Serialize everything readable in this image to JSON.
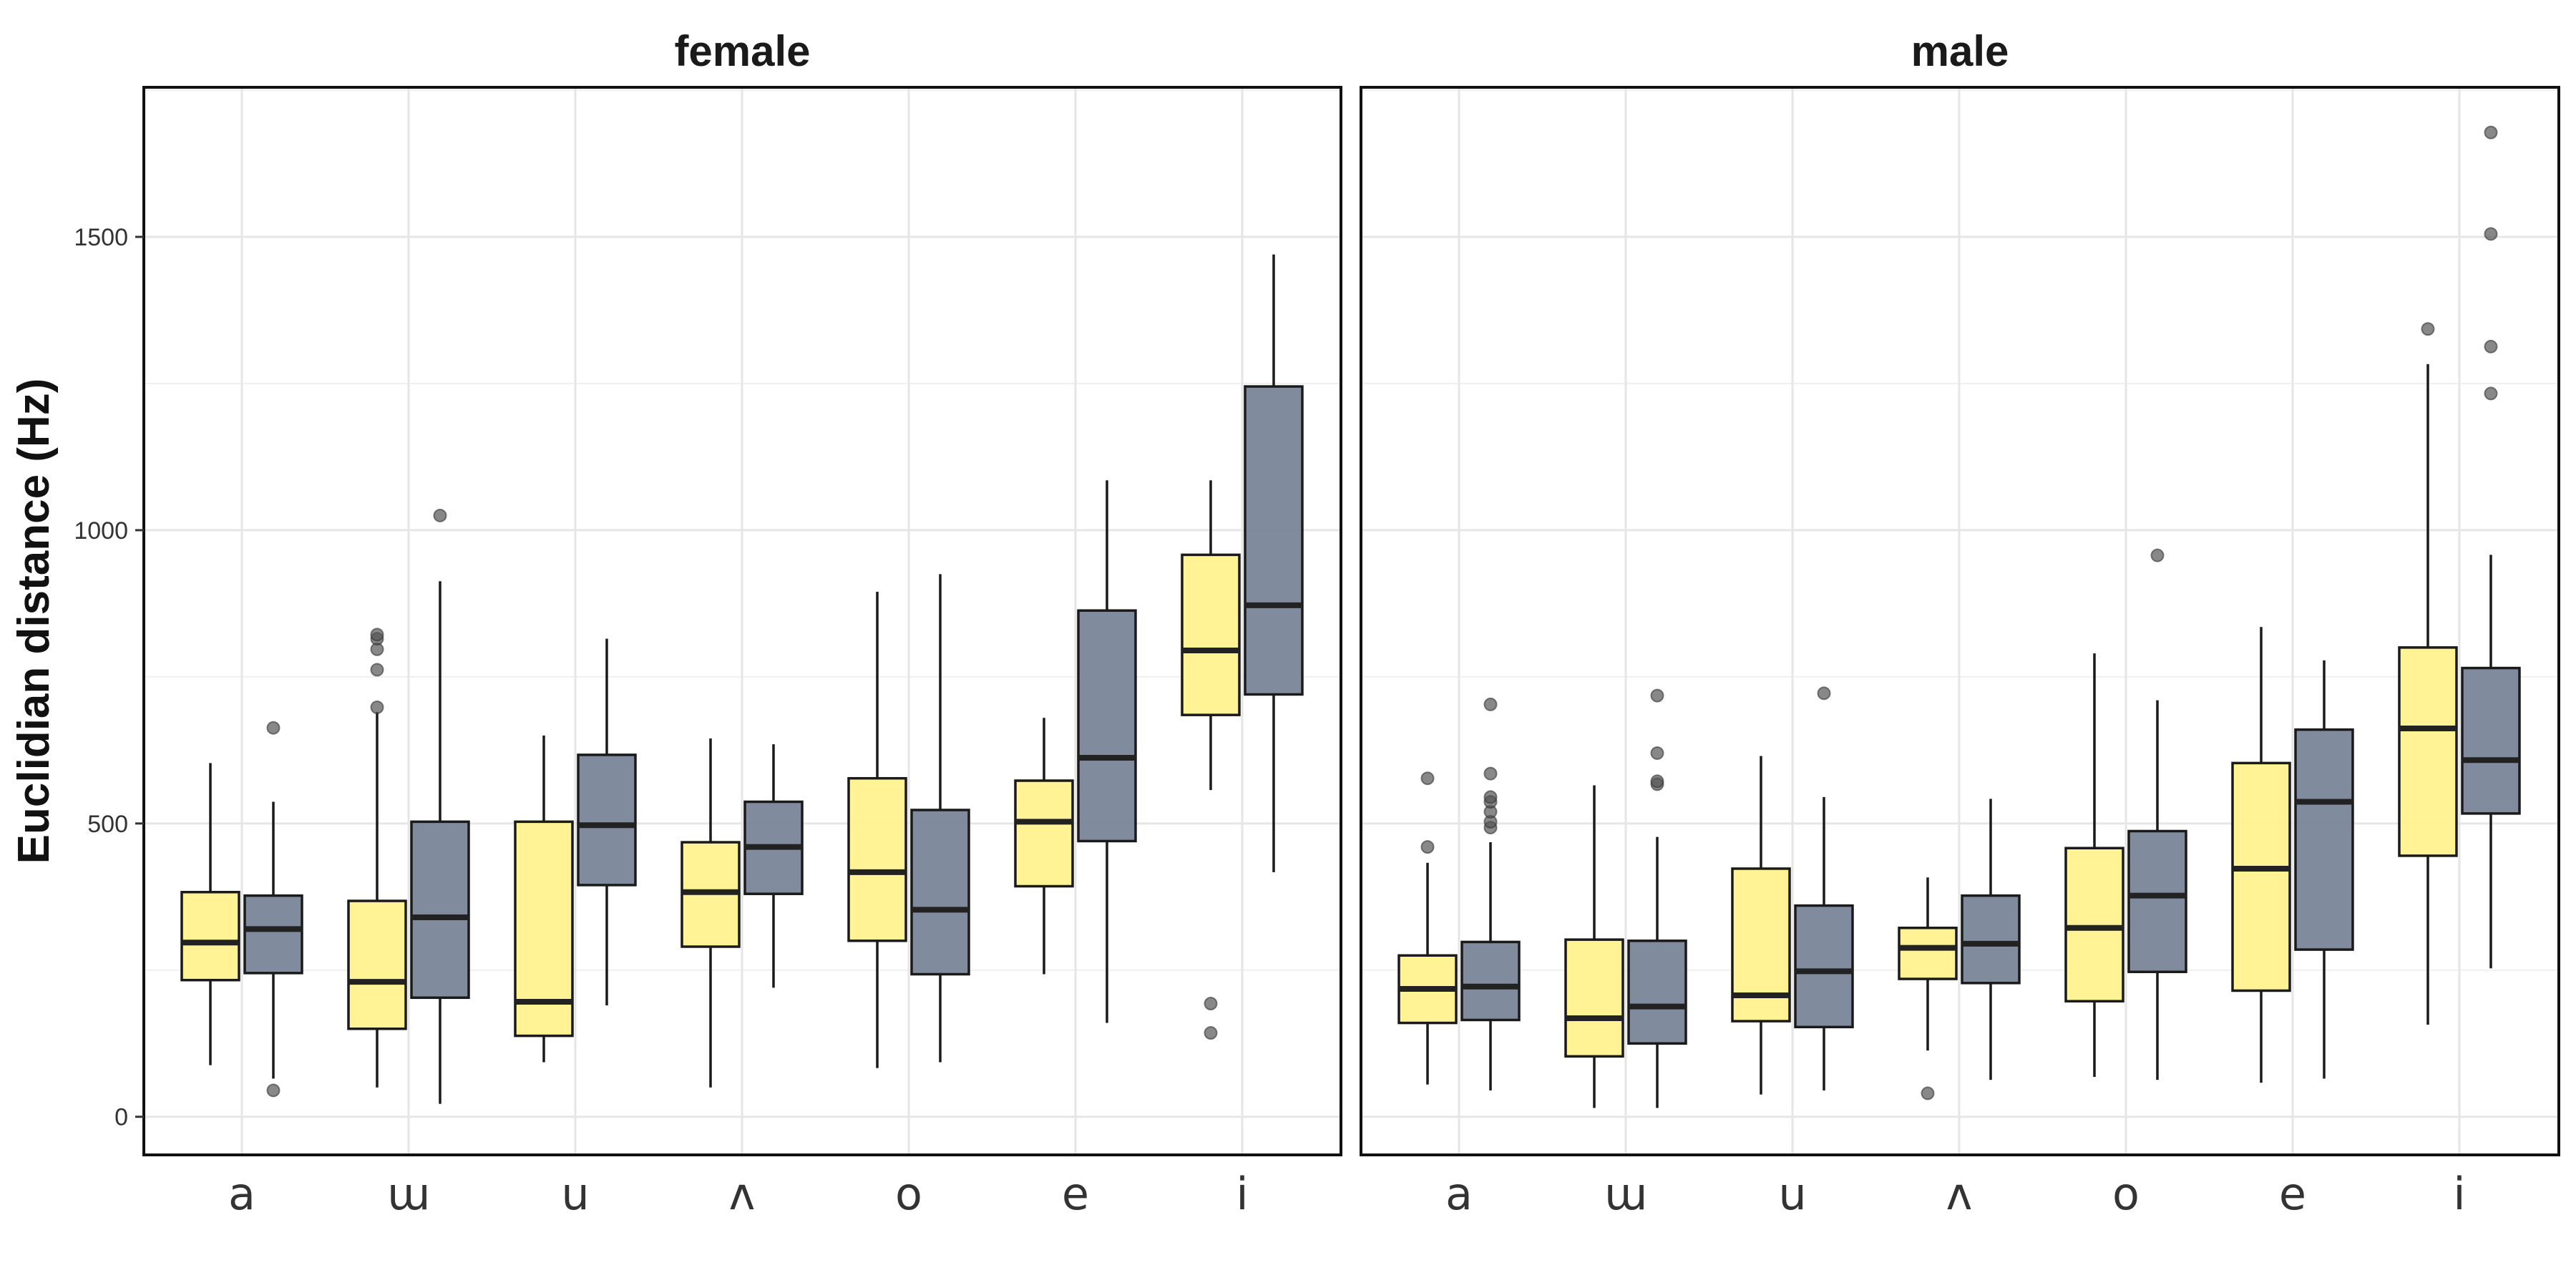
{
  "chart_data": {
    "type": "boxplot",
    "ylabel": "Euclidian distance (Hz)",
    "xlabel": "",
    "ylim": [
      -65,
      1755
    ],
    "yticks": [
      0,
      500,
      1000,
      1500
    ],
    "categories": [
      "a",
      "ɯ",
      "u",
      "ʌ",
      "o",
      "e",
      "i"
    ],
    "colors": {
      "group1": "#fff28f",
      "group2": "#7a8599",
      "median": "#222222",
      "outlier": "#555555",
      "grid": "#e6e6e6"
    },
    "legend": "none",
    "grid": true,
    "panels": [
      {
        "title": "female",
        "groups": [
          {
            "color_key": "group1",
            "boxes": [
              {
                "category": "a",
                "whisker_low": 88,
                "q1": 233,
                "median": 297,
                "q3": 383,
                "whisker_high": 603,
                "outliers": []
              },
              {
                "category": "ɯ",
                "whisker_low": 50,
                "q1": 150,
                "median": 230,
                "q3": 368,
                "whisker_high": 690,
                "outliers": [
                  698,
                  762,
                  797,
                  815,
                  822
                ]
              },
              {
                "category": "u",
                "whisker_low": 93,
                "q1": 138,
                "median": 196,
                "q3": 503,
                "whisker_high": 650,
                "outliers": []
              },
              {
                "category": "ʌ",
                "whisker_low": 50,
                "q1": 290,
                "median": 383,
                "q3": 468,
                "whisker_high": 645,
                "outliers": []
              },
              {
                "category": "o",
                "whisker_low": 83,
                "q1": 300,
                "median": 417,
                "q3": 577,
                "whisker_high": 895,
                "outliers": []
              },
              {
                "category": "e",
                "whisker_low": 243,
                "q1": 393,
                "median": 503,
                "q3": 573,
                "whisker_high": 680,
                "outliers": []
              },
              {
                "category": "i",
                "whisker_low": 557,
                "q1": 685,
                "median": 795,
                "q3": 958,
                "whisker_high": 1085,
                "outliers": [
                  143,
                  193
                ]
              }
            ]
          },
          {
            "color_key": "group2",
            "boxes": [
              {
                "category": "a",
                "whisker_low": 65,
                "q1": 245,
                "median": 320,
                "q3": 377,
                "whisker_high": 537,
                "outliers": [
                  45,
                  663
                ]
              },
              {
                "category": "ɯ",
                "whisker_low": 22,
                "q1": 203,
                "median": 340,
                "q3": 503,
                "whisker_high": 913,
                "outliers": [
                  1025
                ]
              },
              {
                "category": "u",
                "whisker_low": 190,
                "q1": 395,
                "median": 497,
                "q3": 617,
                "whisker_high": 815,
                "outliers": []
              },
              {
                "category": "ʌ",
                "whisker_low": 220,
                "q1": 380,
                "median": 460,
                "q3": 537,
                "whisker_high": 635,
                "outliers": []
              },
              {
                "category": "o",
                "whisker_low": 93,
                "q1": 243,
                "median": 353,
                "q3": 523,
                "whisker_high": 925,
                "outliers": []
              },
              {
                "category": "e",
                "whisker_low": 160,
                "q1": 470,
                "median": 612,
                "q3": 863,
                "whisker_high": 1085,
                "outliers": []
              },
              {
                "category": "i",
                "whisker_low": 417,
                "q1": 720,
                "median": 872,
                "q3": 1245,
                "whisker_high": 1470,
                "outliers": []
              }
            ]
          }
        ]
      },
      {
        "title": "male",
        "groups": [
          {
            "color_key": "group1",
            "boxes": [
              {
                "category": "a",
                "whisker_low": 55,
                "q1": 160,
                "median": 218,
                "q3": 275,
                "whisker_high": 433,
                "outliers": [
                  460,
                  577
                ]
              },
              {
                "category": "ɯ",
                "whisker_low": 15,
                "q1": 103,
                "median": 168,
                "q3": 302,
                "whisker_high": 565,
                "outliers": []
              },
              {
                "category": "u",
                "whisker_low": 38,
                "q1": 163,
                "median": 207,
                "q3": 423,
                "whisker_high": 615,
                "outliers": []
              },
              {
                "category": "ʌ",
                "whisker_low": 113,
                "q1": 235,
                "median": 288,
                "q3": 322,
                "whisker_high": 408,
                "outliers": [
                  40
                ]
              },
              {
                "category": "o",
                "whisker_low": 68,
                "q1": 197,
                "median": 322,
                "q3": 458,
                "whisker_high": 790,
                "outliers": []
              },
              {
                "category": "e",
                "whisker_low": 58,
                "q1": 215,
                "median": 423,
                "q3": 603,
                "whisker_high": 835,
                "outliers": []
              },
              {
                "category": "i",
                "whisker_low": 157,
                "q1": 445,
                "median": 662,
                "q3": 800,
                "whisker_high": 1283,
                "outliers": [
                  1343
                ]
              }
            ]
          },
          {
            "color_key": "group2",
            "boxes": [
              {
                "category": "a",
                "whisker_low": 45,
                "q1": 165,
                "median": 222,
                "q3": 298,
                "whisker_high": 468,
                "outliers": [
                  493,
                  503,
                  520,
                  537,
                  545,
                  585,
                  703
                ]
              },
              {
                "category": "ɯ",
                "whisker_low": 15,
                "q1": 125,
                "median": 188,
                "q3": 300,
                "whisker_high": 477,
                "outliers": [
                  567,
                  572,
                  620,
                  718
                ]
              },
              {
                "category": "u",
                "whisker_low": 45,
                "q1": 153,
                "median": 248,
                "q3": 360,
                "whisker_high": 545,
                "outliers": [
                  722
                ]
              },
              {
                "category": "ʌ",
                "whisker_low": 63,
                "q1": 228,
                "median": 295,
                "q3": 377,
                "whisker_high": 542,
                "outliers": []
              },
              {
                "category": "o",
                "whisker_low": 63,
                "q1": 247,
                "median": 377,
                "q3": 487,
                "whisker_high": 710,
                "outliers": [
                  957
                ]
              },
              {
                "category": "e",
                "whisker_low": 65,
                "q1": 285,
                "median": 537,
                "q3": 660,
                "whisker_high": 778,
                "outliers": []
              },
              {
                "category": "i",
                "whisker_low": 253,
                "q1": 517,
                "median": 608,
                "q3": 765,
                "whisker_high": 958,
                "outliers": [
                  1233,
                  1313,
                  1505,
                  1678
                ]
              }
            ]
          }
        ]
      }
    ]
  }
}
